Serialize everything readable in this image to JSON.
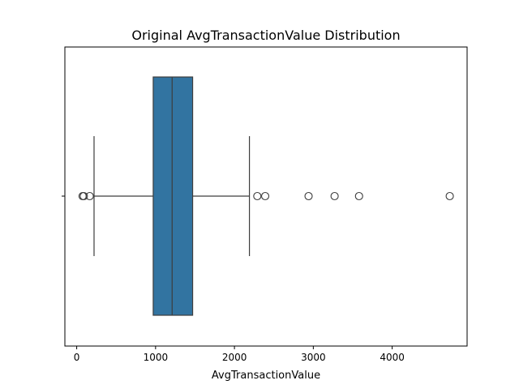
{
  "chart_data": {
    "type": "box",
    "title": "Original AvgTransactionValue Distribution",
    "xlabel": "AvgTransactionValue",
    "ylabel": "",
    "orientation": "horizontal",
    "xlim": [
      -150,
      4950
    ],
    "xticks": [
      0,
      1000,
      2000,
      3000,
      4000
    ],
    "box": {
      "whisker_low": 220,
      "q1": 970,
      "median": 1210,
      "q3": 1470,
      "whisker_high": 2190
    },
    "outliers": [
      75,
      90,
      165,
      2290,
      2390,
      2940,
      3270,
      3580,
      4730
    ],
    "colors": {
      "box_fill": "#3274a1",
      "line": "#3d3d3d",
      "axis": "#000000",
      "outlier_edge": "#3d3d3d"
    }
  }
}
